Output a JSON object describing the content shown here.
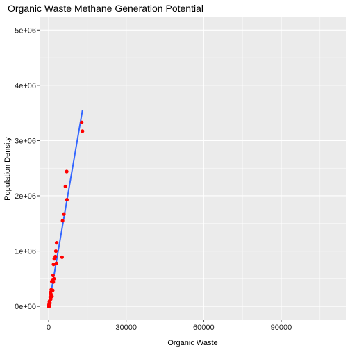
{
  "chart_data": {
    "type": "scatter",
    "title": "Organic Waste Methane Generation Potential",
    "xlabel": "Organic Waste",
    "ylabel": "Population Density",
    "xlim": [
      -3500,
      115000
    ],
    "ylim": [
      -250000,
      5230000
    ],
    "x_ticks": [
      0,
      30000,
      60000,
      90000
    ],
    "x_tick_labels": [
      "0",
      "30000",
      "60000",
      "90000"
    ],
    "y_ticks": [
      0,
      1000000,
      2000000,
      3000000,
      4000000,
      5000000
    ],
    "y_tick_labels": [
      "0e+00",
      "1e+06",
      "2e+06",
      "3e+06",
      "4e+06",
      "5e+06"
    ],
    "grid": true,
    "points_color": "#FF0000",
    "fit_color": "#3366FF",
    "panel_color": "#EBEBEB",
    "points": [
      {
        "x": 12800,
        "y": 3330000
      },
      {
        "x": 13100,
        "y": 3170000
      },
      {
        "x": 7000,
        "y": 2440000
      },
      {
        "x": 6500,
        "y": 2170000
      },
      {
        "x": 7100,
        "y": 1930000
      },
      {
        "x": 5900,
        "y": 1670000
      },
      {
        "x": 5400,
        "y": 1550000
      },
      {
        "x": 3100,
        "y": 1150000
      },
      {
        "x": 2800,
        "y": 1000000
      },
      {
        "x": 2600,
        "y": 900000
      },
      {
        "x": 5200,
        "y": 890000
      },
      {
        "x": 2200,
        "y": 860000
      },
      {
        "x": 1900,
        "y": 760000
      },
      {
        "x": 3000,
        "y": 780000
      },
      {
        "x": 1700,
        "y": 560000
      },
      {
        "x": 2100,
        "y": 500000
      },
      {
        "x": 1500,
        "y": 470000
      },
      {
        "x": 1200,
        "y": 450000
      },
      {
        "x": 1800,
        "y": 440000
      },
      {
        "x": 1000,
        "y": 300000
      },
      {
        "x": 1600,
        "y": 290000
      },
      {
        "x": 700,
        "y": 250000
      },
      {
        "x": 900,
        "y": 220000
      },
      {
        "x": 1300,
        "y": 180000
      },
      {
        "x": 600,
        "y": 170000
      },
      {
        "x": 800,
        "y": 130000
      },
      {
        "x": 400,
        "y": 100000
      },
      {
        "x": 300,
        "y": 80000
      },
      {
        "x": 500,
        "y": 60000
      },
      {
        "x": 200,
        "y": 40000
      },
      {
        "x": 100,
        "y": 20000
      },
      {
        "x": 300,
        "y": 10000
      },
      {
        "x": 0,
        "y": 0
      },
      {
        "x": 150,
        "y": -5000
      }
    ],
    "fit_line": {
      "x": [
        0,
        13100
      ],
      "y": [
        0,
        3550000
      ]
    }
  }
}
